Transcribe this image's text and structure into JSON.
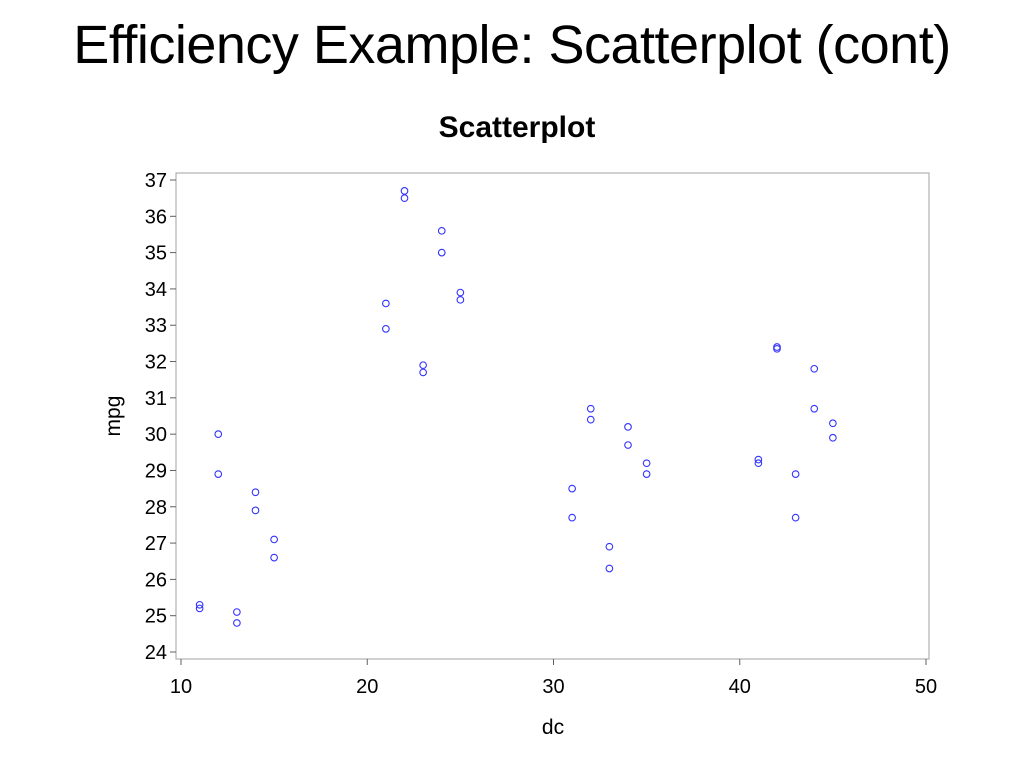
{
  "slide": {
    "title": "Efficiency Example: Scatterplot (cont)"
  },
  "chart_data": {
    "type": "scatter",
    "title": "Scatterplot",
    "xlabel": "dc",
    "ylabel": "mpg",
    "xlim": [
      10,
      50
    ],
    "ylim": [
      24,
      37
    ],
    "x_ticks": [
      10,
      20,
      30,
      40,
      50
    ],
    "y_ticks": [
      24,
      25,
      26,
      27,
      28,
      29,
      30,
      31,
      32,
      33,
      34,
      35,
      36,
      37
    ],
    "grid": false,
    "legend": "none",
    "marker": "open-circle",
    "marker_color": "#3333ff",
    "series": [
      {
        "x": [
          11,
          11,
          12,
          12,
          13,
          13,
          14,
          14,
          15,
          15,
          21,
          21,
          22,
          22,
          23,
          23,
          24,
          24,
          25,
          25,
          31,
          31,
          32,
          32,
          33,
          33,
          34,
          34,
          35,
          35,
          41,
          41,
          42,
          42,
          43,
          43,
          44,
          44,
          45,
          45
        ],
        "y": [
          25.3,
          25.2,
          30.0,
          28.9,
          25.1,
          24.8,
          28.4,
          27.9,
          27.1,
          26.6,
          33.6,
          32.9,
          36.7,
          36.5,
          31.9,
          31.7,
          35.6,
          35.0,
          33.9,
          33.7,
          28.5,
          27.7,
          30.7,
          30.4,
          26.9,
          26.3,
          30.2,
          29.7,
          29.2,
          28.9,
          29.3,
          29.2,
          32.4,
          32.35,
          28.9,
          27.7,
          31.8,
          30.7,
          30.3,
          29.9
        ]
      }
    ]
  }
}
